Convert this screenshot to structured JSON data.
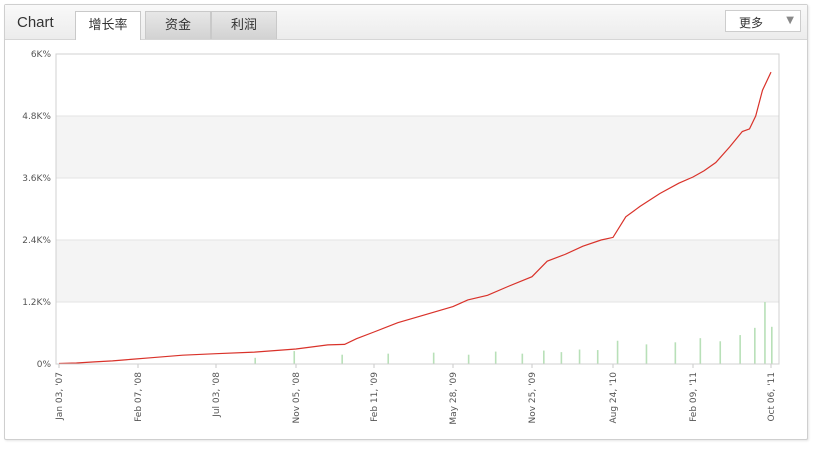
{
  "header": {
    "title": "Chart",
    "tabs": [
      {
        "label": "增长率",
        "active": true
      },
      {
        "label": "资金",
        "active": false
      },
      {
        "label": "利润",
        "active": false
      }
    ],
    "more_label": "更多",
    "more_icon": "chevron-down-icon"
  },
  "colors": {
    "line": "#d9322a",
    "bars": "#b8e0b8",
    "band": "#f4f4f4",
    "grid": "#e3e3e3"
  },
  "chart_data": {
    "type": "line",
    "title": "",
    "xlabel": "",
    "ylabel": "",
    "ylim": [
      0,
      6000
    ],
    "y_ticks": [
      "0%",
      "1.2K%",
      "2.4K%",
      "3.6K%",
      "4.8K%",
      "6K%"
    ],
    "y_tick_values": [
      0,
      1200,
      2400,
      3600,
      4800,
      6000
    ],
    "x_ticks": [
      "Jan 03, '07",
      "Feb 07, '08",
      "Jul 03, '08",
      "Nov 05, '08",
      "Feb 11, '09",
      "May 28, '09",
      "Nov 25, '09",
      "Aug 24, '10",
      "Feb 09, '11",
      "Oct 06, '11"
    ],
    "series": [
      {
        "type": "line",
        "x": [
          "2007-01-03",
          "2007-04-01",
          "2007-07-01",
          "2007-10-01",
          "2008-01-01",
          "2008-03-01",
          "2008-05-01",
          "2008-07-03",
          "2008-09-01",
          "2008-11-05",
          "2008-12-15",
          "2009-01-05",
          "2009-01-20",
          "2009-02-11",
          "2009-03-15",
          "2009-04-15",
          "2009-05-28",
          "2009-07-01",
          "2009-08-15",
          "2009-10-01",
          "2009-11-25",
          "2010-01-15",
          "2010-03-15",
          "2010-05-15",
          "2010-07-15",
          "2010-08-24",
          "2010-09-20",
          "2010-10-20",
          "2010-12-01",
          "2011-01-10",
          "2011-02-09",
          "2011-03-15",
          "2011-04-20",
          "2011-06-01",
          "2011-07-10",
          "2011-08-01",
          "2011-08-20",
          "2011-09-10",
          "2011-10-06"
        ],
        "values": [
          10,
          20,
          40,
          60,
          90,
          120,
          170,
          200,
          230,
          290,
          370,
          380,
          490,
          620,
          800,
          930,
          1110,
          1240,
          1330,
          1500,
          1690,
          1990,
          2120,
          2280,
          2400,
          2450,
          2850,
          3050,
          3300,
          3500,
          3620,
          3740,
          3900,
          4200,
          4500,
          4550,
          4800,
          5300,
          5650
        ]
      },
      {
        "type": "bar",
        "note": "daily values",
        "x": [
          "2008-09-01",
          "2008-11-01",
          "2009-01-01",
          "2009-03-01",
          "2009-05-01",
          "2009-07-01",
          "2009-09-01",
          "2009-11-01",
          "2010-01-01",
          "2010-03-01",
          "2010-05-01",
          "2010-07-01",
          "2010-09-01",
          "2010-11-01",
          "2011-01-01",
          "2011-03-01",
          "2011-05-01",
          "2011-07-01",
          "2011-08-15",
          "2011-09-15",
          "2011-10-06"
        ],
        "values": [
          120,
          250,
          180,
          200,
          220,
          180,
          240,
          200,
          260,
          230,
          280,
          270,
          450,
          380,
          420,
          500,
          440,
          560,
          700,
          1200,
          720
        ]
      }
    ]
  }
}
